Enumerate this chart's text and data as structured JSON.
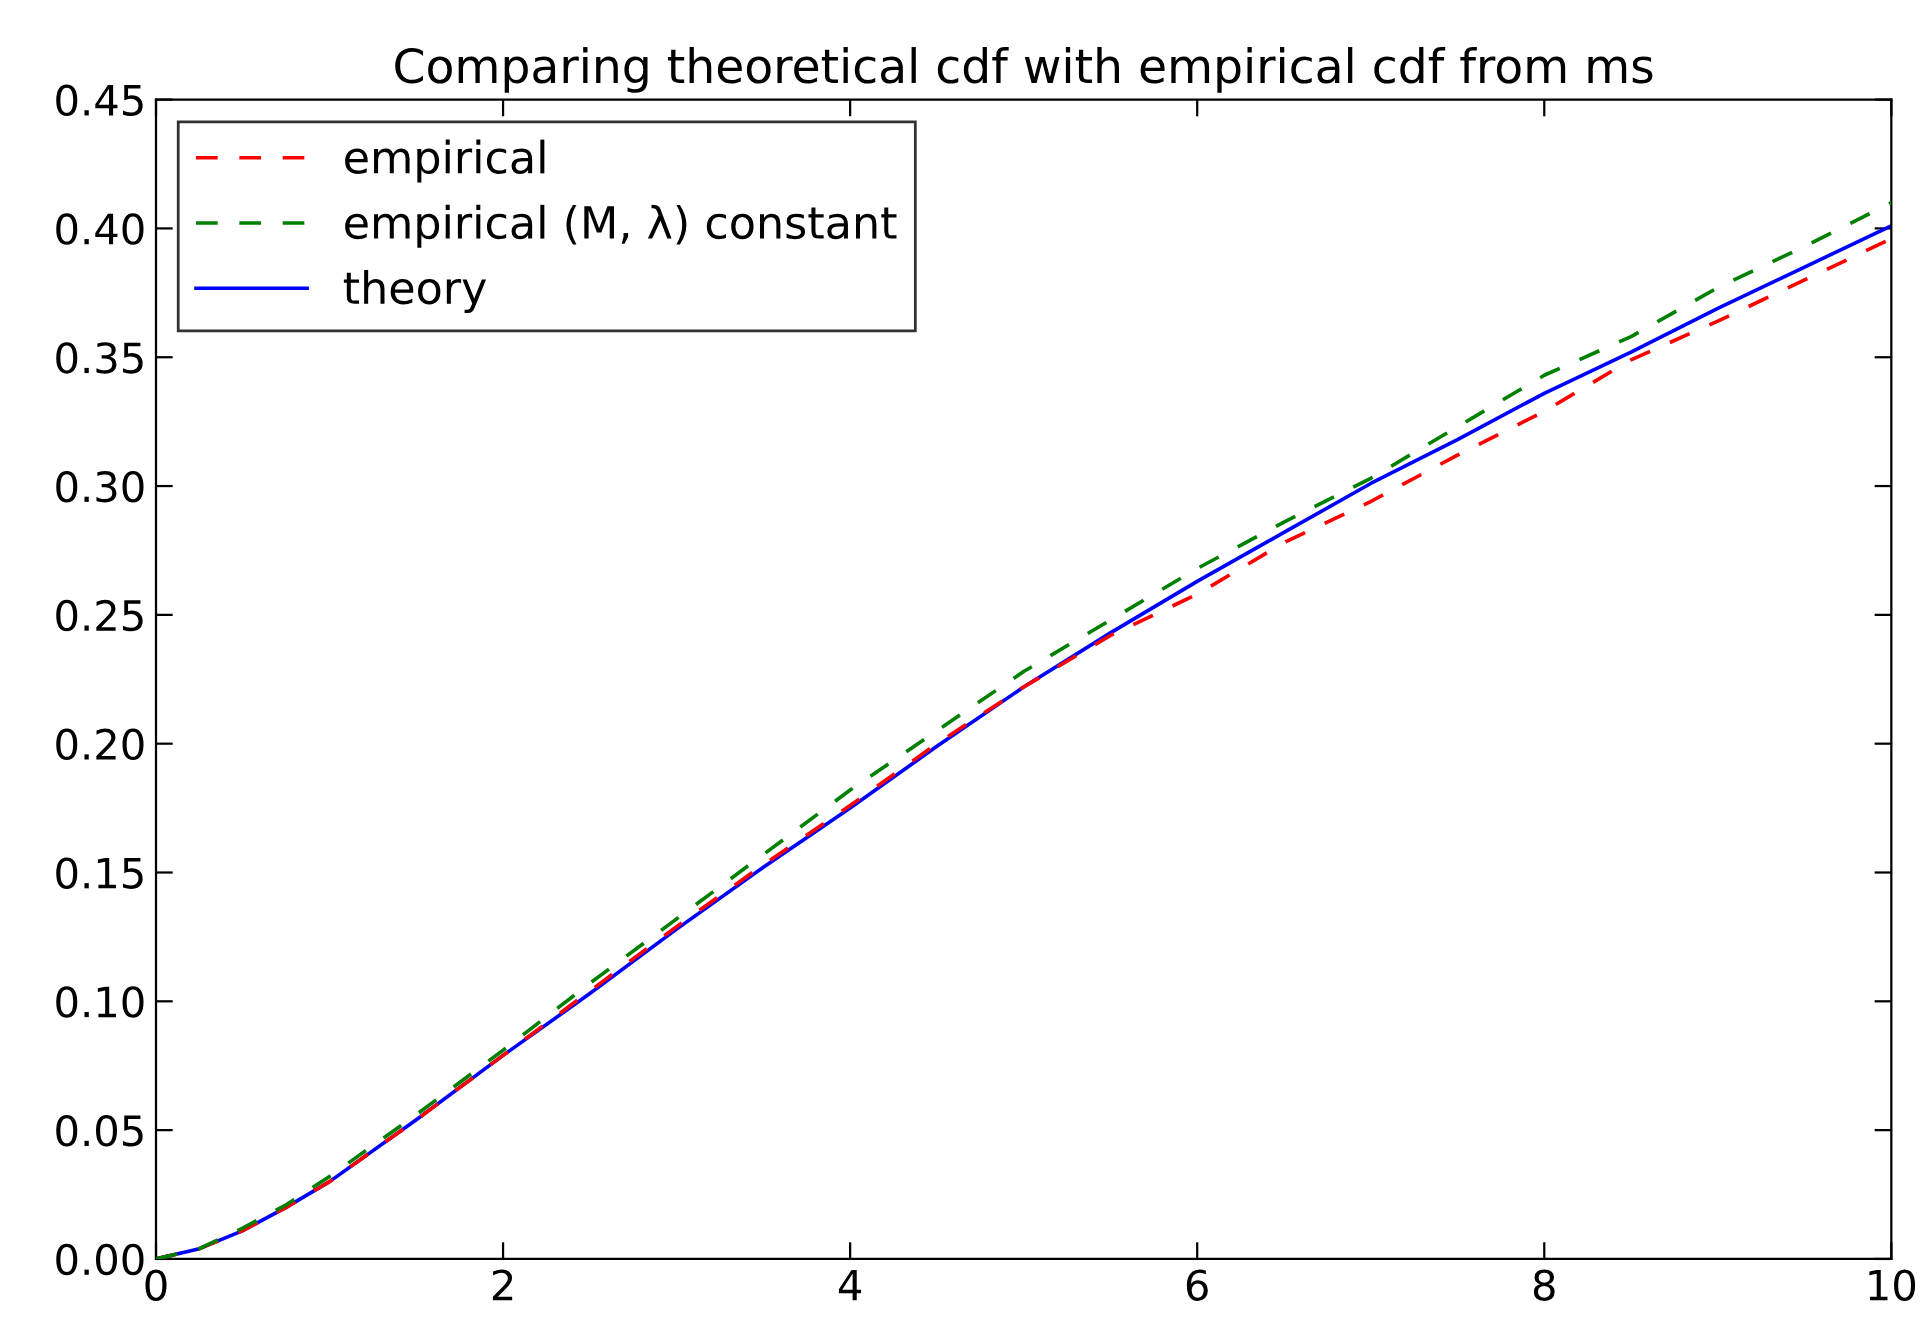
{
  "chart_data": {
    "type": "line",
    "title": "Comparing theoretical cdf with empirical cdf from ms",
    "x": [
      0,
      0.25,
      0.5,
      0.75,
      1,
      1.5,
      2,
      2.5,
      3,
      3.5,
      4,
      4.5,
      5,
      5.5,
      6,
      6.5,
      7,
      7.5,
      8,
      8.5,
      9,
      9.5,
      10
    ],
    "series": [
      {
        "name": "empirical",
        "color": "#ff0000",
        "line_style": "dashed",
        "values": [
          0,
          0.004,
          0.011,
          0.02,
          0.03,
          0.054,
          0.079,
          0.104,
          0.129,
          0.153,
          0.176,
          0.2,
          0.222,
          0.242,
          0.258,
          0.278,
          0.294,
          0.312,
          0.329,
          0.349,
          0.364,
          0.38,
          0.396
        ]
      },
      {
        "name": "empirical (M, λ) constant",
        "color": "#008000",
        "line_style": "dashed",
        "values": [
          0,
          0.004,
          0.012,
          0.021,
          0.032,
          0.056,
          0.081,
          0.107,
          0.132,
          0.157,
          0.182,
          0.205,
          0.228,
          0.248,
          0.268,
          0.286,
          0.303,
          0.323,
          0.343,
          0.358,
          0.377,
          0.393,
          0.41
        ]
      },
      {
        "name": "theory",
        "color": "#0000ff",
        "line_style": "solid",
        "values": [
          0,
          0.004,
          0.011,
          0.02,
          0.03,
          0.054,
          0.079,
          0.103,
          0.128,
          0.152,
          0.175,
          0.199,
          0.222,
          0.243,
          0.263,
          0.282,
          0.301,
          0.318,
          0.336,
          0.352,
          0.369,
          0.385,
          0.401
        ]
      }
    ],
    "xlim": [
      0,
      10
    ],
    "ylim": [
      0,
      0.45
    ],
    "xticks": [
      0,
      2,
      4,
      6,
      8,
      10
    ],
    "yticks": [
      {
        "value": 0,
        "label": "0.00"
      },
      {
        "value": 0.05,
        "label": "0.05"
      },
      {
        "value": 0.1,
        "label": "0.10"
      },
      {
        "value": 0.15,
        "label": "0.15"
      },
      {
        "value": 0.2,
        "label": "0.20"
      },
      {
        "value": 0.25,
        "label": "0.25"
      },
      {
        "value": 0.3,
        "label": "0.30"
      },
      {
        "value": 0.35,
        "label": "0.35"
      },
      {
        "value": 0.4,
        "label": "0.40"
      },
      {
        "value": 0.45,
        "label": "0.45"
      }
    ],
    "legend": "top left",
    "grid": false
  }
}
